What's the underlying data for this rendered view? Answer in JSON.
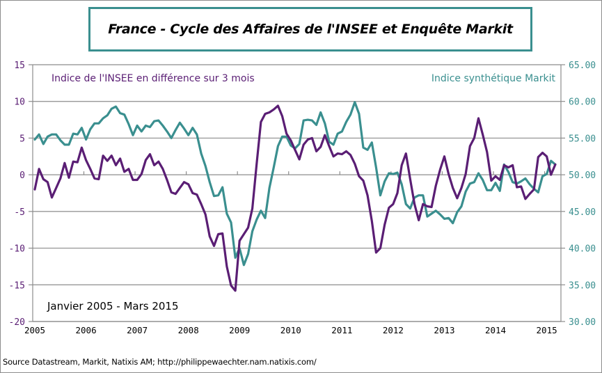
{
  "chart_data": {
    "type": "line",
    "title": "France - Cycle des Affaires de l'INSEE et Enquête Markit",
    "period_label": "Janvier 2005 - Mars 2015",
    "source": "Source Datastream, Markit, Natixis AM;  http://philippewaechter.nam.natixis.com/",
    "x": {
      "start": "2005-01",
      "end": "2015-03",
      "frequency": "monthly",
      "tick_labels": [
        "2005",
        "2006",
        "2007",
        "2008",
        "2009",
        "2010",
        "2011",
        "2012",
        "2013",
        "2014",
        "2015"
      ]
    },
    "y_left": {
      "ylim": [
        -20,
        15
      ],
      "tick_labels": [
        "15",
        "10",
        "5",
        "0",
        "-5",
        "-10",
        "-15",
        "-20"
      ],
      "ticks": [
        15,
        10,
        5,
        0,
        -5,
        -10,
        -15,
        -20
      ]
    },
    "y_right": {
      "ylim": [
        30,
        65
      ],
      "tick_labels": [
        "65.00",
        "60.00",
        "55.00",
        "50.00",
        "45.00",
        "40.00",
        "35.00",
        "30.00"
      ],
      "ticks": [
        65,
        60,
        55,
        50,
        45,
        40,
        35,
        30
      ]
    },
    "grid": true,
    "colors": {
      "insee": "#5a1e74",
      "markit": "#3a8f8f",
      "title_border": "#3a8f8f"
    },
    "series": [
      {
        "name": "Indice de l'INSEE en différence sur 3 mois",
        "axis": "left",
        "color": "#5a1e74",
        "values": [
          -2.0,
          0.8,
          -0.6,
          -1.0,
          -3.1,
          -1.8,
          -0.5,
          1.6,
          -0.4,
          1.8,
          1.7,
          3.7,
          2.0,
          0.8,
          -0.5,
          -0.6,
          2.6,
          1.9,
          2.6,
          1.3,
          2.2,
          0.4,
          0.8,
          -0.7,
          -0.7,
          0.1,
          2.0,
          2.8,
          1.3,
          1.8,
          0.8,
          -0.7,
          -2.4,
          -2.6,
          -1.8,
          -1.0,
          -1.3,
          -2.5,
          -2.7,
          -4.0,
          -5.4,
          -8.4,
          -9.7,
          -8.1,
          -8.0,
          -12.5,
          -15.1,
          -15.8,
          -9.0,
          -8.1,
          -7.2,
          -4.6,
          1.5,
          7.2,
          8.3,
          8.5,
          8.9,
          9.4,
          8.0,
          5.6,
          4.7,
          3.4,
          2.1,
          4.1,
          4.8,
          5.0,
          3.2,
          3.8,
          5.4,
          3.9,
          2.5,
          2.9,
          2.8,
          3.2,
          2.7,
          1.5,
          -0.2,
          -0.8,
          -2.8,
          -6.3,
          -10.6,
          -10.0,
          -6.8,
          -4.5,
          -4.0,
          -2.5,
          1.3,
          2.9,
          -0.6,
          -4.0,
          -6.2,
          -4.0,
          -4.3,
          -4.4,
          -1.5,
          0.7,
          2.5,
          0.1,
          -1.8,
          -3.2,
          -1.8,
          0.1,
          3.9,
          5.0,
          7.7,
          5.5,
          3.1,
          -0.8,
          -0.2,
          -0.7,
          1.3,
          1.0,
          1.3,
          -1.7,
          -1.6,
          -3.3,
          -2.6,
          -2.0,
          2.4,
          3.0,
          2.5,
          0.0,
          1.4
        ]
      },
      {
        "name": "Indice synthétique Markit",
        "axis": "right",
        "color": "#3a8f8f",
        "values": [
          54.8,
          55.5,
          54.2,
          55.2,
          55.5,
          55.5,
          54.7,
          54.1,
          54.1,
          55.6,
          55.5,
          56.4,
          54.8,
          56.2,
          57.0,
          57.0,
          57.7,
          58.1,
          59.0,
          59.3,
          58.4,
          58.2,
          56.9,
          55.4,
          56.7,
          55.9,
          56.7,
          56.5,
          57.3,
          57.4,
          56.7,
          55.9,
          55.0,
          56.1,
          57.1,
          56.3,
          55.4,
          56.4,
          55.5,
          52.9,
          51.2,
          49.0,
          47.1,
          47.2,
          48.3,
          44.7,
          43.5,
          38.7,
          40.0,
          37.7,
          39.2,
          42.3,
          43.9,
          45.1,
          44.1,
          48.2,
          51.0,
          53.9,
          55.2,
          55.2,
          54.0,
          53.6,
          54.2,
          57.4,
          57.5,
          57.4,
          56.8,
          58.5,
          57.0,
          54.5,
          54.1,
          55.6,
          55.9,
          57.2,
          58.2,
          59.9,
          58.3,
          53.7,
          53.4,
          54.4,
          51.0,
          47.2,
          49.1,
          50.2,
          50.1,
          50.3,
          48.7,
          46.0,
          45.4,
          46.9,
          47.2,
          47.2,
          44.3,
          44.7,
          45.1,
          44.6,
          44.0,
          44.1,
          43.4,
          44.9,
          45.7,
          47.7,
          48.8,
          49.0,
          50.2,
          49.3,
          47.9,
          47.9,
          48.9,
          47.8,
          51.4,
          50.4,
          49.0,
          48.8,
          49.1,
          49.5,
          48.7,
          48.1,
          47.6,
          49.8,
          50.1,
          51.9,
          51.4
        ]
      }
    ]
  }
}
